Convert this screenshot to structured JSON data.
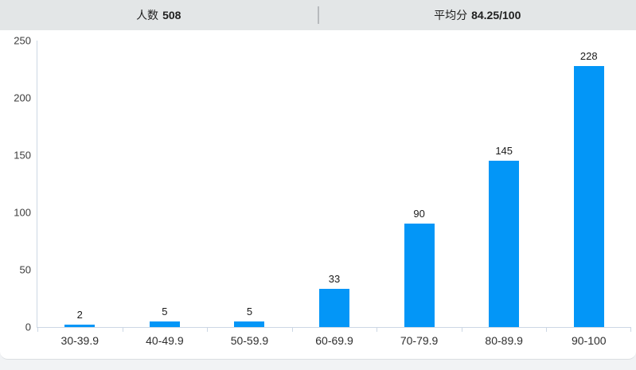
{
  "header": {
    "stats": [
      {
        "label": "人数",
        "value": "508"
      },
      {
        "label": "平均分",
        "value": "84.25/100"
      }
    ]
  },
  "colors": {
    "bar": "#0396f7",
    "axis": "#ccd7e4",
    "header_bg": "#e3e6e7",
    "page_bg": "#f1f3f5",
    "card_bg": "#ffffff"
  },
  "chart_data": {
    "type": "bar",
    "title": "",
    "xlabel": "",
    "ylabel": "",
    "categories": [
      "30-39.9",
      "40-49.9",
      "50-59.9",
      "60-69.9",
      "70-79.9",
      "80-89.9",
      "90-100"
    ],
    "values": [
      2,
      5,
      5,
      33,
      90,
      145,
      228
    ],
    "ylim": [
      0,
      250
    ],
    "yticks": [
      0,
      50,
      100,
      150,
      200,
      250
    ],
    "grid": false,
    "legend": false,
    "value_labels": true,
    "bar_color": "#0396f7"
  }
}
